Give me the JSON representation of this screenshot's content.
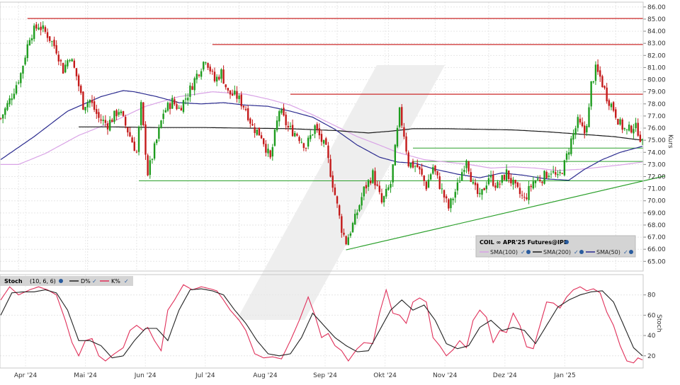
{
  "chart_data": [
    {
      "type": "candlestick",
      "instrument": "COIL",
      "symbol_label": "APR'25 Futures@IPE",
      "y_axis_label": "Kurs",
      "ylim": [
        64.2,
        86.4
      ],
      "y_ticks": [
        "65.00",
        "66.00",
        "67.00",
        "68.00",
        "69.00",
        "70.00",
        "71.00",
        "72.00",
        "73.00",
        "74.00",
        "75.00",
        "76.00",
        "77.00",
        "78.00",
        "79.00",
        "80.00",
        "81.00",
        "82.00",
        "83.00",
        "84.00",
        "85.00",
        "86.00"
      ],
      "x_labels": [
        "Apr '24",
        "Mai '24",
        "Jun '24",
        "Jul '24",
        "Aug '24",
        "Sep '24",
        "Okt '24",
        "Nov '24",
        "Dez '24",
        "Jan '25"
      ],
      "legend": {
        "sma100": "SMA(100)",
        "sma200": "SMA(200)",
        "sma50": "SMA(50)"
      },
      "colors": {
        "up": "#1e9c1e",
        "down": "#c41a1a",
        "sma100": "#d9a3e6",
        "sma200": "#1a1a1a",
        "sma50": "#2b2b8f",
        "resistance": "#cc2a2a",
        "support": "#2ca02c"
      },
      "close_path": [
        [
          0,
          76.8
        ],
        [
          4,
          78.3
        ],
        [
          9,
          80.5
        ],
        [
          13,
          83.6
        ],
        [
          17,
          84.5
        ],
        [
          21,
          83.7
        ],
        [
          25,
          82.5
        ],
        [
          28,
          80.8
        ],
        [
          31,
          82
        ],
        [
          34,
          80.3
        ],
        [
          37,
          77.9
        ],
        [
          40,
          78.3
        ],
        [
          44,
          76.8
        ],
        [
          48,
          76.3
        ],
        [
          53,
          77.5
        ],
        [
          57,
          75.8
        ],
        [
          61,
          74
        ],
        [
          63,
          77.8
        ],
        [
          66,
          72.3
        ],
        [
          70,
          75
        ],
        [
          73,
          77.3
        ],
        [
          77,
          78.2
        ],
        [
          80,
          77.6
        ],
        [
          84,
          78.8
        ],
        [
          88,
          80.4
        ],
        [
          92,
          81.8
        ],
        [
          96,
          79.9
        ],
        [
          99,
          80.6
        ],
        [
          102,
          78.9
        ],
        [
          106,
          78.6
        ],
        [
          110,
          77.6
        ],
        [
          113,
          76.1
        ],
        [
          117,
          75.4
        ],
        [
          121,
          73.4
        ],
        [
          125,
          77.5
        ],
        [
          129,
          76
        ],
        [
          133,
          75.5
        ],
        [
          137,
          74.5
        ],
        [
          141,
          76.1
        ],
        [
          146,
          74.2
        ],
        [
          150,
          70.5
        ],
        [
          153,
          67.7
        ],
        [
          155,
          66.6
        ],
        [
          159,
          68.5
        ],
        [
          163,
          70.9
        ],
        [
          167,
          72.2
        ],
        [
          171,
          69.8
        ],
        [
          175,
          71.4
        ],
        [
          177,
          74.2
        ],
        [
          179,
          77.3
        ],
        [
          181,
          75.5
        ],
        [
          183,
          73.1
        ],
        [
          187,
          72.8
        ],
        [
          191,
          71.2
        ],
        [
          194,
          72.8
        ],
        [
          198,
          70.8
        ],
        [
          201,
          69.4
        ],
        [
          205,
          71.2
        ],
        [
          209,
          73.6
        ],
        [
          212,
          71.2
        ],
        [
          215,
          70.2
        ],
        [
          219,
          72
        ],
        [
          223,
          71.2
        ],
        [
          227,
          72.3
        ],
        [
          231,
          71
        ],
        [
          235,
          70.1
        ],
        [
          239,
          71.6
        ],
        [
          243,
          71.9
        ],
        [
          247,
          72.5
        ],
        [
          250,
          71.8
        ],
        [
          253,
          73
        ],
        [
          256,
          75
        ],
        [
          259,
          76.5
        ],
        [
          262,
          75.6
        ],
        [
          264,
          77.5
        ],
        [
          265,
          79.6
        ],
        [
          267,
          80.8
        ],
        [
          269,
          80.2
        ],
        [
          272,
          78.6
        ],
        [
          275,
          77.6
        ],
        [
          278,
          76.3
        ],
        [
          281,
          75.7
        ],
        [
          284,
          76.2
        ],
        [
          286,
          75.8
        ],
        [
          288,
          74.7
        ]
      ],
      "sma50": [
        [
          0,
          73.4
        ],
        [
          15,
          75.3
        ],
        [
          30,
          77.4
        ],
        [
          45,
          78.6
        ],
        [
          55,
          79.1
        ],
        [
          60,
          79.0
        ],
        [
          70,
          78.6
        ],
        [
          80,
          78.1
        ],
        [
          90,
          78.0
        ],
        [
          100,
          78.1
        ],
        [
          110,
          77.9
        ],
        [
          120,
          77.8
        ],
        [
          130,
          77.4
        ],
        [
          140,
          76.9
        ],
        [
          150,
          75.9
        ],
        [
          160,
          74.6
        ],
        [
          170,
          73.6
        ],
        [
          178,
          73.2
        ],
        [
          186,
          73.1
        ],
        [
          195,
          72.6
        ],
        [
          205,
          72.2
        ],
        [
          215,
          71.9
        ],
        [
          225,
          72.3
        ],
        [
          235,
          72.1
        ],
        [
          245,
          71.8
        ],
        [
          255,
          71.7
        ],
        [
          262,
          72.6
        ],
        [
          270,
          73.4
        ],
        [
          278,
          74.0
        ],
        [
          284,
          74.3
        ],
        [
          288,
          74.5
        ]
      ],
      "sma100": [
        [
          0,
          73.0
        ],
        [
          8,
          73.0
        ],
        [
          20,
          73.9
        ],
        [
          35,
          75.4
        ],
        [
          50,
          76.5
        ],
        [
          65,
          77.8
        ],
        [
          80,
          78.6
        ],
        [
          95,
          79.0
        ],
        [
          110,
          78.8
        ],
        [
          120,
          78.4
        ],
        [
          130,
          77.9
        ],
        [
          140,
          77.1
        ],
        [
          150,
          76.2
        ],
        [
          160,
          75.3
        ],
        [
          170,
          74.6
        ],
        [
          178,
          74.0
        ],
        [
          190,
          73.4
        ],
        [
          200,
          73.2
        ],
        [
          210,
          73.0
        ],
        [
          220,
          72.7
        ],
        [
          230,
          72.8
        ],
        [
          240,
          72.7
        ],
        [
          250,
          72.5
        ],
        [
          260,
          72.6
        ],
        [
          270,
          72.8
        ],
        [
          280,
          73.0
        ],
        [
          288,
          73.2
        ]
      ],
      "sma200": [
        [
          35,
          76.1
        ],
        [
          50,
          76.1
        ],
        [
          70,
          76.05
        ],
        [
          90,
          76.05
        ],
        [
          110,
          76.0
        ],
        [
          130,
          75.95
        ],
        [
          150,
          75.8
        ],
        [
          165,
          75.6
        ],
        [
          175,
          75.75
        ],
        [
          185,
          75.95
        ],
        [
          200,
          75.95
        ],
        [
          215,
          75.9
        ],
        [
          230,
          75.85
        ],
        [
          245,
          75.7
        ],
        [
          260,
          75.5
        ],
        [
          275,
          75.3
        ],
        [
          288,
          75.0
        ]
      ],
      "resistance_levels": [
        {
          "value": 85.05,
          "from": 12
        },
        {
          "value": 82.9,
          "from": 95
        },
        {
          "value": 78.8,
          "from": 130
        }
      ],
      "support_levels": [
        {
          "value": 74.35,
          "from": 185
        },
        {
          "value": 73.25,
          "from": 185
        },
        {
          "value": 71.65,
          "from": 62
        }
      ],
      "trendline": [
        [
          155,
          65.95
        ],
        [
          298,
          72.05
        ]
      ]
    },
    {
      "type": "line",
      "indicator": "Stoch",
      "params": "(10, 6, 6)",
      "y_axis_label": "Stoch",
      "ylim": [
        8,
        100
      ],
      "y_ticks": [
        "20",
        "40",
        "60",
        "80"
      ],
      "legend": {
        "d": "D%",
        "k": "K%"
      },
      "colors": {
        "d": "#222222",
        "k": "#e0305a"
      },
      "k_path": [
        [
          0,
          75
        ],
        [
          4,
          88
        ],
        [
          8,
          80
        ],
        [
          13,
          85
        ],
        [
          17,
          88
        ],
        [
          21,
          85
        ],
        [
          25,
          80
        ],
        [
          29,
          55
        ],
        [
          32,
          33
        ],
        [
          35,
          20
        ],
        [
          38,
          35
        ],
        [
          41,
          37
        ],
        [
          44,
          20
        ],
        [
          47,
          15
        ],
        [
          51,
          22
        ],
        [
          55,
          28
        ],
        [
          58,
          45
        ],
        [
          61,
          50
        ],
        [
          64,
          45
        ],
        [
          66,
          48
        ],
        [
          69,
          35
        ],
        [
          72,
          25
        ],
        [
          75,
          65
        ],
        [
          78,
          75
        ],
        [
          82,
          90
        ],
        [
          86,
          85
        ],
        [
          90,
          88
        ],
        [
          94,
          86
        ],
        [
          97,
          84
        ],
        [
          100,
          75
        ],
        [
          103,
          65
        ],
        [
          107,
          55
        ],
        [
          110,
          45
        ],
        [
          114,
          22
        ],
        [
          118,
          18
        ],
        [
          122,
          19
        ],
        [
          126,
          17
        ],
        [
          130,
          35
        ],
        [
          134,
          55
        ],
        [
          138,
          78
        ],
        [
          141,
          60
        ],
        [
          144,
          38
        ],
        [
          147,
          42
        ],
        [
          150,
          30
        ],
        [
          153,
          25
        ],
        [
          156,
          15
        ],
        [
          160,
          27
        ],
        [
          163,
          33
        ],
        [
          167,
          32
        ],
        [
          170,
          62
        ],
        [
          173,
          85
        ],
        [
          176,
          62
        ],
        [
          179,
          60
        ],
        [
          182,
          52
        ],
        [
          185,
          73
        ],
        [
          188,
          77
        ],
        [
          191,
          73
        ],
        [
          194,
          38
        ],
        [
          197,
          30
        ],
        [
          200,
          20
        ],
        [
          203,
          26
        ],
        [
          206,
          35
        ],
        [
          209,
          28
        ],
        [
          212,
          55
        ],
        [
          215,
          65
        ],
        [
          218,
          58
        ],
        [
          221,
          33
        ],
        [
          224,
          45
        ],
        [
          227,
          43
        ],
        [
          230,
          62
        ],
        [
          233,
          50
        ],
        [
          236,
          29
        ],
        [
          239,
          27
        ],
        [
          242,
          50
        ],
        [
          245,
          73
        ],
        [
          248,
          72
        ],
        [
          251,
          67
        ],
        [
          254,
          78
        ],
        [
          257,
          85
        ],
        [
          260,
          88
        ],
        [
          263,
          84
        ],
        [
          266,
          86
        ],
        [
          269,
          82
        ],
        [
          272,
          63
        ],
        [
          275,
          50
        ],
        [
          278,
          30
        ],
        [
          281,
          15
        ],
        [
          284,
          13
        ],
        [
          286,
          18
        ],
        [
          288,
          16
        ]
      ],
      "d_path": [
        [
          0,
          60
        ],
        [
          5,
          82
        ],
        [
          10,
          83
        ],
        [
          15,
          83
        ],
        [
          20,
          85
        ],
        [
          25,
          82
        ],
        [
          30,
          65
        ],
        [
          35,
          35
        ],
        [
          40,
          35
        ],
        [
          45,
          30
        ],
        [
          50,
          18
        ],
        [
          55,
          20
        ],
        [
          60,
          35
        ],
        [
          65,
          47
        ],
        [
          70,
          47
        ],
        [
          75,
          35
        ],
        [
          80,
          65
        ],
        [
          85,
          85
        ],
        [
          90,
          86
        ],
        [
          95,
          84
        ],
        [
          100,
          80
        ],
        [
          105,
          65
        ],
        [
          110,
          52
        ],
        [
          115,
          35
        ],
        [
          120,
          22
        ],
        [
          125,
          20
        ],
        [
          130,
          22
        ],
        [
          135,
          38
        ],
        [
          140,
          62
        ],
        [
          145,
          50
        ],
        [
          150,
          38
        ],
        [
          155,
          30
        ],
        [
          160,
          24
        ],
        [
          165,
          25
        ],
        [
          170,
          45
        ],
        [
          175,
          65
        ],
        [
          180,
          75
        ],
        [
          185,
          65
        ],
        [
          190,
          70
        ],
        [
          195,
          55
        ],
        [
          200,
          32
        ],
        [
          205,
          27
        ],
        [
          210,
          30
        ],
        [
          215,
          48
        ],
        [
          220,
          55
        ],
        [
          225,
          45
        ],
        [
          230,
          48
        ],
        [
          235,
          45
        ],
        [
          240,
          32
        ],
        [
          245,
          50
        ],
        [
          250,
          68
        ],
        [
          255,
          75
        ],
        [
          260,
          80
        ],
        [
          265,
          83
        ],
        [
          270,
          84
        ],
        [
          275,
          73
        ],
        [
          280,
          48
        ],
        [
          284,
          28
        ],
        [
          288,
          20
        ]
      ]
    }
  ]
}
